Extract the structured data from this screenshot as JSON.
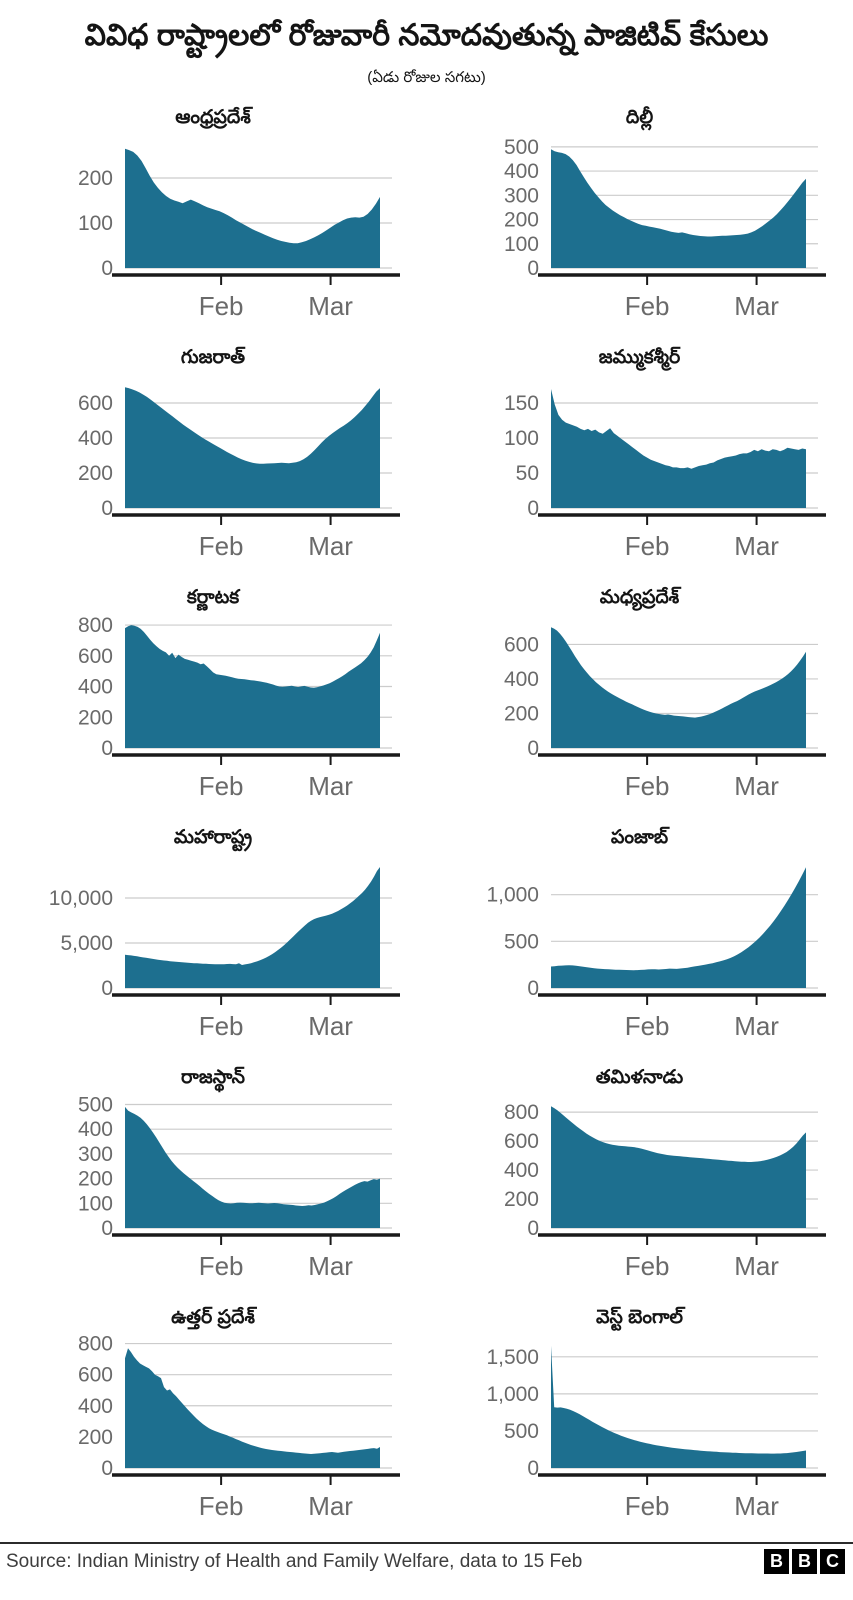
{
  "header": {
    "title": "వివిధ రాష్ట్రాలలో రోజువారీ నమోదవుతున్న పాజిటివ్ కేసులు",
    "subtitle": "(ఏడు రోజుల సగటు)"
  },
  "colors": {
    "area_fill": "#1d6f8f",
    "gridline": "#cccccc",
    "axis_line": "#1a1a1a",
    "tick_label": "#6a6a6a"
  },
  "xaxis": {
    "labels": [
      "Feb",
      "Mar"
    ],
    "positions": [
      0.36,
      0.77
    ]
  },
  "chart_data": [
    {
      "type": "area",
      "title": "ఆంధ్రప్రదేశ్",
      "ylim": 280,
      "yticks": [
        0,
        100,
        200
      ],
      "ytick_labels": [
        "0",
        "100",
        "200"
      ],
      "values": [
        265,
        262,
        258,
        250,
        238,
        222,
        205,
        190,
        178,
        168,
        160,
        154,
        150,
        147,
        144,
        148,
        152,
        148,
        144,
        139,
        135,
        132,
        129,
        126,
        122,
        117,
        112,
        106,
        101,
        96,
        91,
        86,
        82,
        78,
        74,
        70,
        66,
        63,
        60,
        58,
        56,
        55,
        55,
        57,
        60,
        64,
        68,
        73,
        78,
        84,
        90,
        96,
        101,
        106,
        110,
        112,
        113,
        112,
        114,
        120,
        130,
        143,
        158
      ]
    },
    {
      "type": "area",
      "title": "దిల్లీ",
      "ylim": 520,
      "yticks": [
        0,
        100,
        200,
        300,
        400,
        500
      ],
      "ytick_labels": [
        "0",
        "100",
        "200",
        "300",
        "400",
        "500"
      ],
      "values": [
        490,
        482,
        478,
        475,
        470,
        460,
        445,
        425,
        400,
        375,
        352,
        330,
        310,
        292,
        275,
        260,
        248,
        237,
        227,
        218,
        210,
        202,
        195,
        188,
        182,
        177,
        174,
        171,
        168,
        165,
        162,
        158,
        154,
        150,
        147,
        145,
        147,
        143,
        139,
        136,
        134,
        132,
        131,
        130,
        130,
        131,
        132,
        133,
        133,
        134,
        135,
        136,
        137,
        139,
        142,
        147,
        154,
        163,
        173,
        184,
        196,
        208,
        222,
        238,
        255,
        273,
        292,
        312,
        332,
        352,
        368
      ]
    },
    {
      "type": "area",
      "title": "గుజరాత్",
      "ylim": 720,
      "yticks": [
        0,
        200,
        400,
        600
      ],
      "ytick_labels": [
        "0",
        "200",
        "400",
        "600"
      ],
      "values": [
        690,
        685,
        678,
        670,
        660,
        648,
        635,
        620,
        604,
        588,
        572,
        556,
        540,
        524,
        508,
        492,
        476,
        461,
        447,
        433,
        419,
        405,
        392,
        380,
        368,
        356,
        344,
        332,
        320,
        309,
        298,
        288,
        279,
        271,
        264,
        258,
        255,
        253,
        253,
        254,
        255,
        256,
        257,
        258,
        257,
        256,
        258,
        262,
        268,
        278,
        292,
        310,
        330,
        352,
        374,
        394,
        412,
        428,
        443,
        457,
        470,
        484,
        500,
        518,
        538,
        560,
        584,
        610,
        638,
        665,
        685
      ]
    },
    {
      "type": "area",
      "title": "జమ్ముకశ్మీర్",
      "ylim": 180,
      "yticks": [
        0,
        50,
        100,
        150
      ],
      "ytick_labels": [
        "0",
        "50",
        "100",
        "150"
      ],
      "values": [
        170,
        148,
        133,
        126,
        122,
        120,
        118,
        116,
        113,
        111,
        113,
        110,
        112,
        108,
        106,
        110,
        114,
        107,
        103,
        99,
        95,
        91,
        87,
        83,
        79,
        75,
        72,
        69,
        67,
        65,
        63,
        61,
        60,
        58,
        58,
        57,
        57,
        58,
        56,
        58,
        60,
        61,
        62,
        64,
        65,
        68,
        70,
        72,
        73,
        74,
        75,
        77,
        78,
        78,
        80,
        83,
        81,
        84,
        82,
        81,
        84,
        83,
        81,
        83,
        86,
        85,
        84,
        83,
        85,
        84
      ]
    },
    {
      "type": "area",
      "title": "కర్ణాటక",
      "ylim": 820,
      "yticks": [
        0,
        200,
        400,
        600,
        800
      ],
      "ytick_labels": [
        "0",
        "200",
        "400",
        "600",
        "800"
      ],
      "values": [
        780,
        792,
        800,
        796,
        788,
        775,
        755,
        730,
        705,
        682,
        662,
        645,
        632,
        622,
        600,
        620,
        585,
        608,
        592,
        580,
        574,
        568,
        562,
        556,
        545,
        550,
        532,
        512,
        492,
        480,
        477,
        474,
        470,
        465,
        460,
        455,
        451,
        449,
        447,
        444,
        441,
        439,
        436,
        433,
        429,
        424,
        419,
        413,
        406,
        400,
        398,
        400,
        403,
        405,
        400,
        397,
        401,
        404,
        399,
        394,
        392,
        396,
        401,
        407,
        414,
        422,
        432,
        443,
        455,
        467,
        481,
        496,
        510,
        523,
        537,
        552,
        570,
        592,
        620,
        655,
        700,
        750
      ]
    },
    {
      "type": "area",
      "title": "మధ్యప్రదేశ్",
      "ylim": 730,
      "yticks": [
        0,
        200,
        400,
        600
      ],
      "ytick_labels": [
        "0",
        "200",
        "400",
        "600"
      ],
      "values": [
        700,
        692,
        680,
        662,
        640,
        615,
        588,
        560,
        532,
        505,
        480,
        457,
        436,
        416,
        398,
        381,
        366,
        352,
        339,
        327,
        316,
        306,
        296,
        287,
        278,
        269,
        261,
        253,
        245,
        237,
        229,
        222,
        215,
        209,
        204,
        200,
        197,
        194,
        192,
        194,
        191,
        188,
        186,
        185,
        183,
        181,
        179,
        177,
        176,
        179,
        182,
        186,
        191,
        197,
        204,
        212,
        220,
        229,
        238,
        247,
        256,
        264,
        272,
        281,
        291,
        301,
        311,
        320,
        328,
        335,
        341,
        348,
        356,
        364,
        372,
        381,
        391,
        402,
        414,
        428,
        444,
        462,
        482,
        505,
        530,
        558
      ]
    },
    {
      "type": "area",
      "title": "మహారాష్ట్ర",
      "ylim": 14000,
      "yticks": [
        0,
        5000,
        10000
      ],
      "ytick_labels": [
        "0",
        "5,000",
        "10,000"
      ],
      "values": [
        3700,
        3660,
        3620,
        3570,
        3520,
        3460,
        3400,
        3350,
        3300,
        3250,
        3200,
        3150,
        3100,
        3060,
        3020,
        2980,
        2950,
        2920,
        2890,
        2860,
        2830,
        2800,
        2780,
        2760,
        2740,
        2720,
        2700,
        2685,
        2670,
        2660,
        2650,
        2645,
        2640,
        2650,
        2665,
        2680,
        2660,
        2640,
        2760,
        2560,
        2620,
        2680,
        2760,
        2850,
        2960,
        3080,
        3220,
        3380,
        3560,
        3760,
        3980,
        4220,
        4480,
        4760,
        5060,
        5380,
        5700,
        6020,
        6340,
        6660,
        6960,
        7240,
        7480,
        7660,
        7780,
        7880,
        7960,
        8040,
        8140,
        8260,
        8400,
        8560,
        8740,
        8940,
        9160,
        9400,
        9660,
        9940,
        10240,
        10560,
        10920,
        11340,
        11820,
        12380,
        13000,
        13450
      ]
    },
    {
      "type": "area",
      "title": "పంజాబ్",
      "ylim": 1350,
      "yticks": [
        0,
        500,
        1000
      ],
      "ytick_labels": [
        "0",
        "500",
        "1,000"
      ],
      "values": [
        230,
        234,
        238,
        240,
        242,
        244,
        242,
        238,
        233,
        228,
        222,
        217,
        212,
        208,
        205,
        202,
        200,
        198,
        196,
        195,
        194,
        193,
        192,
        191,
        192,
        194,
        196,
        199,
        201,
        200,
        198,
        200,
        204,
        208,
        207,
        205,
        209,
        213,
        218,
        225,
        231,
        237,
        244,
        251,
        258,
        266,
        275,
        285,
        296,
        309,
        323,
        340,
        360,
        383,
        409,
        437,
        468,
        502,
        539,
        579,
        622,
        668,
        717,
        769,
        824,
        882,
        943,
        1007,
        1074,
        1144,
        1217,
        1293
      ]
    },
    {
      "type": "area",
      "title": "రాజస్థాన్",
      "ylim": 510,
      "yticks": [
        0,
        100,
        200,
        300,
        400,
        500
      ],
      "ytick_labels": [
        "0",
        "100",
        "200",
        "300",
        "400",
        "500"
      ],
      "values": [
        490,
        475,
        468,
        462,
        455,
        446,
        434,
        420,
        404,
        386,
        367,
        347,
        327,
        307,
        288,
        271,
        256,
        243,
        231,
        220,
        210,
        200,
        190,
        180,
        170,
        159,
        149,
        139,
        130,
        121,
        113,
        107,
        102,
        100,
        99,
        100,
        102,
        103,
        102,
        101,
        100,
        100,
        101,
        102,
        101,
        100,
        99,
        100,
        101,
        100,
        98,
        96,
        95,
        94,
        93,
        91,
        90,
        89,
        90,
        92,
        91,
        93,
        96,
        99,
        103,
        108,
        114,
        121,
        129,
        138,
        146,
        154,
        161,
        168,
        175,
        181,
        186,
        190,
        188,
        193,
        198,
        195,
        200
      ]
    },
    {
      "type": "area",
      "title": "తమిళనాడు",
      "ylim": 870,
      "yticks": [
        0,
        200,
        400,
        600,
        800
      ],
      "ytick_labels": [
        "0",
        "200",
        "400",
        "600",
        "800"
      ],
      "values": [
        840,
        828,
        812,
        794,
        775,
        756,
        737,
        719,
        701,
        684,
        668,
        652,
        638,
        625,
        613,
        603,
        594,
        586,
        580,
        575,
        571,
        568,
        566,
        564,
        562,
        560,
        557,
        553,
        548,
        542,
        536,
        529,
        523,
        517,
        512,
        508,
        504,
        501,
        499,
        497,
        495,
        493,
        491,
        489,
        487,
        485,
        483,
        481,
        479,
        477,
        475,
        473,
        471,
        469,
        467,
        465,
        463,
        461,
        459,
        458,
        457,
        456,
        456,
        457,
        459,
        462,
        466,
        471,
        477,
        484,
        492,
        501,
        512,
        525,
        541,
        560,
        583,
        610,
        638,
        660
      ]
    },
    {
      "type": "area",
      "title": "ఉత్తర్ ప్రదేశ్",
      "ylim": 810,
      "yticks": [
        0,
        200,
        400,
        600,
        800
      ],
      "ytick_labels": [
        "0",
        "200",
        "400",
        "600",
        "800"
      ],
      "values": [
        705,
        770,
        745,
        715,
        692,
        672,
        660,
        650,
        640,
        622,
        600,
        590,
        578,
        520,
        498,
        505,
        480,
        462,
        440,
        418,
        396,
        375,
        354,
        334,
        315,
        298,
        282,
        268,
        256,
        246,
        238,
        231,
        224,
        217,
        210,
        202,
        194,
        186,
        178,
        170,
        162,
        155,
        148,
        142,
        136,
        131,
        126,
        122,
        119,
        116,
        113,
        111,
        109,
        107,
        105,
        103,
        101,
        99,
        97,
        95,
        93,
        91,
        90,
        91,
        93,
        95,
        97,
        99,
        101,
        103,
        100,
        98,
        101,
        104,
        107,
        109,
        111,
        113,
        116,
        118,
        120,
        123,
        126,
        128,
        124,
        135
      ]
    },
    {
      "type": "area",
      "title": "వెస్ట్ బెంగాల్",
      "ylim": 1700,
      "yticks": [
        0,
        500,
        1000,
        1500
      ],
      "ytick_labels": [
        "0",
        "500",
        "1,000",
        "1,500"
      ],
      "values": [
        1650,
        820,
        815,
        818,
        810,
        800,
        786,
        768,
        747,
        724,
        700,
        675,
        650,
        625,
        600,
        576,
        553,
        531,
        510,
        490,
        471,
        453,
        436,
        420,
        405,
        391,
        378,
        366,
        355,
        344,
        334,
        325,
        316,
        308,
        300,
        293,
        286,
        280,
        274,
        268,
        263,
        258,
        253,
        249,
        245,
        241,
        237,
        233,
        230,
        227,
        224,
        221,
        218,
        215,
        213,
        211,
        209,
        207,
        205,
        203,
        201,
        200,
        199,
        198,
        197,
        196,
        196,
        195,
        195,
        194,
        194,
        195,
        196,
        198,
        201,
        205,
        210,
        216,
        223,
        230,
        236
      ]
    }
  ],
  "footer": {
    "source": "Source: Indian Ministry of Health and Family Welfare, data to 15 Feb",
    "logo_letters": [
      "B",
      "B",
      "C"
    ]
  }
}
